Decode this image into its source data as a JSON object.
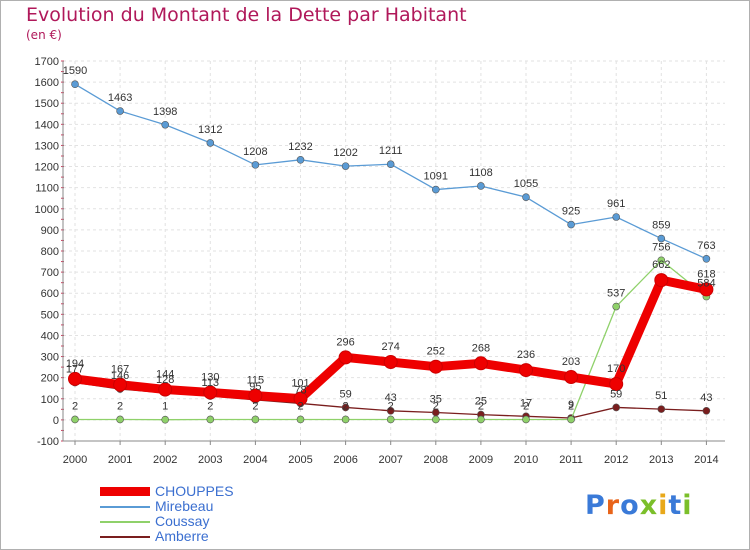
{
  "chart_data": {
    "type": "line",
    "title": "Evolution du Montant de la Dette par Habitant",
    "subtitle": "(en €)",
    "x": [
      "2000",
      "2001",
      "2002",
      "2003",
      "2004",
      "2005",
      "2006",
      "2007",
      "2008",
      "2009",
      "2010",
      "2011",
      "2012",
      "2013",
      "2014"
    ],
    "ylim": [
      -100,
      1700
    ],
    "yticks": [
      -100,
      0,
      100,
      200,
      300,
      400,
      500,
      600,
      700,
      800,
      900,
      1000,
      1100,
      1200,
      1300,
      1400,
      1500,
      1600,
      1700
    ],
    "grid": true,
    "legend_placement": "bottom-left",
    "series": [
      {
        "name": "CHOUPPES",
        "color": "#ee0000",
        "values": [
          194,
          167,
          144,
          130,
          115,
          101,
          296,
          274,
          252,
          268,
          236,
          203,
          170,
          662,
          618
        ]
      },
      {
        "name": "Mirebeau",
        "color": "#5a9bd5",
        "values": [
          1590,
          1463,
          1398,
          1312,
          1208,
          1232,
          1202,
          1211,
          1091,
          1108,
          1055,
          925,
          961,
          859,
          763
        ]
      },
      {
        "name": "Coussay",
        "color": "#8fd16a",
        "values": [
          2,
          2,
          1,
          2,
          2,
          2,
          2,
          2,
          2,
          2,
          2,
          2,
          537,
          756,
          584
        ]
      },
      {
        "name": "Amberre",
        "color": "#7a1e1e",
        "values": [
          177,
          146,
          128,
          113,
          95,
          78,
          59,
          43,
          35,
          25,
          17,
          9,
          59,
          51,
          43
        ]
      }
    ]
  },
  "logo": {
    "text": "Proxiti",
    "letter_colors": [
      "#3a7ad8",
      "#e8641a",
      "#3a7ad8",
      "#7bbf2a",
      "#e8a81a",
      "#3a7ad8",
      "#7bbf2a"
    ]
  }
}
